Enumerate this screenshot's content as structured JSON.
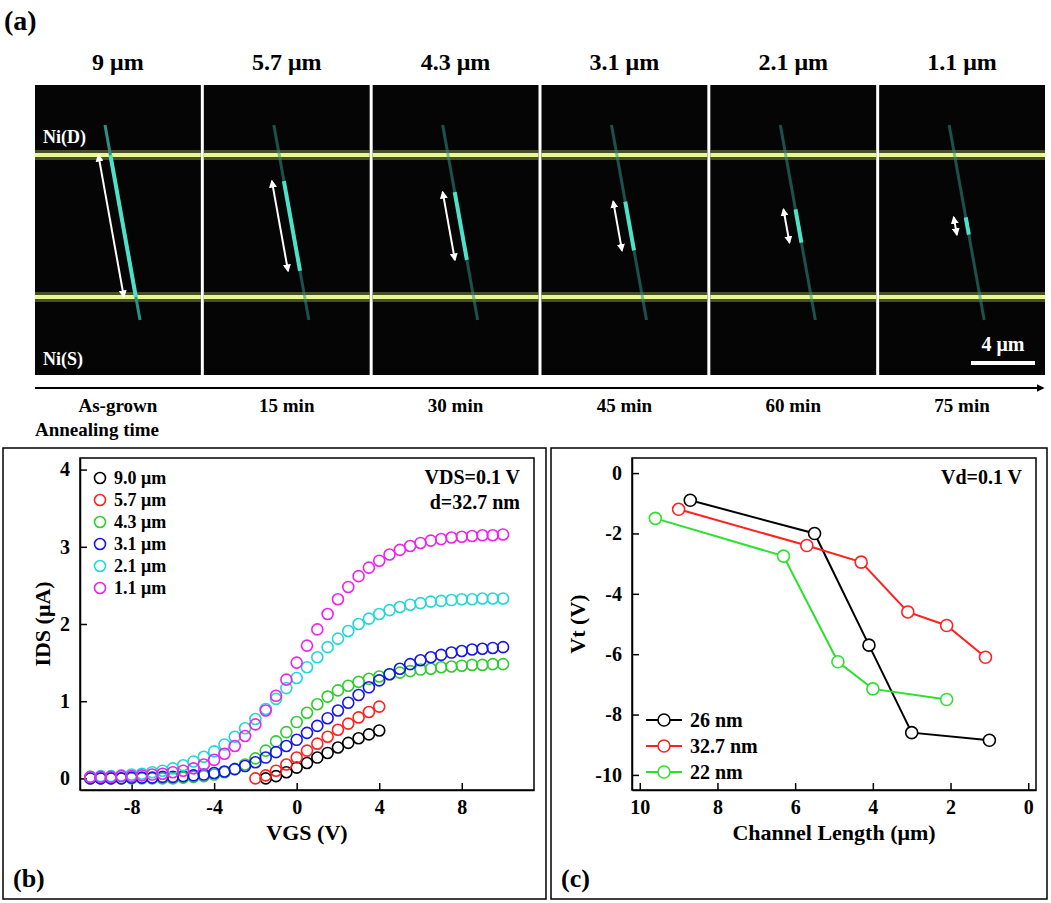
{
  "panel_a": {
    "label": "(a)",
    "electrode_top": "Ni(D)",
    "electrode_bottom": "Ni(S)",
    "scale_bar": {
      "value": 4,
      "label": "4 μm"
    },
    "axis_title": "Annealing time",
    "frames": [
      {
        "length": {
          "value": 9,
          "label": "9 μm"
        },
        "time": "As-grown"
      },
      {
        "length": {
          "value": 5.7,
          "label": "5.7 μm"
        },
        "time": "15 min"
      },
      {
        "length": {
          "value": 4.3,
          "label": "4.3 μm"
        },
        "time": "30 min"
      },
      {
        "length": {
          "value": 3.1,
          "label": "3.1 μm"
        },
        "time": "45 min"
      },
      {
        "length": {
          "value": 2.1,
          "label": "2.1 μm"
        },
        "time": "60 min"
      },
      {
        "length": {
          "value": 1.1,
          "label": "1.1 μm"
        },
        "time": "75 min"
      }
    ]
  },
  "chart_data": [
    {
      "type": "scatter",
      "panel_label": "(b)",
      "xlabel": "VGS (V)",
      "ylabel": "IDS (μA)",
      "annotations": [
        "VDS=0.1 V",
        "d=32.7 nm"
      ],
      "xlim": [
        -10.5,
        11.5
      ],
      "xticks": [
        -8,
        -4,
        0,
        4,
        8
      ],
      "ylim": [
        -0.15,
        4.15
      ],
      "yticks": [
        0,
        1,
        2,
        3,
        4
      ],
      "legend": "upper left",
      "marker": "circle",
      "line_style": "none",
      "series": [
        {
          "name": "9.0 μm",
          "color": "#000000",
          "x": [
            -1.5,
            -1,
            -0.5,
            0,
            0.5,
            1,
            1.5,
            2,
            2.5,
            3,
            3.5,
            4
          ],
          "values": [
            0,
            0.03,
            0.08,
            0.14,
            0.2,
            0.27,
            0.33,
            0.4,
            0.46,
            0.52,
            0.57,
            0.62
          ]
        },
        {
          "name": "5.7 μm",
          "color": "#ff2020",
          "x": [
            -2,
            -1.5,
            -1,
            -0.5,
            0,
            0.5,
            1,
            1.5,
            2,
            2.5,
            3,
            3.5,
            4
          ],
          "values": [
            0,
            0.04,
            0.1,
            0.18,
            0.27,
            0.36,
            0.45,
            0.54,
            0.63,
            0.71,
            0.79,
            0.86,
            0.93
          ]
        },
        {
          "name": "4.3 μm",
          "color": "#2ecc2e",
          "x": [
            -10,
            -9.5,
            -9,
            -8.5,
            -8,
            -7.5,
            -7,
            -6.5,
            -6,
            -5.5,
            -5,
            -4.5,
            -4,
            -3.5,
            -3,
            -2.5,
            -2,
            -1.5,
            -1,
            -0.5,
            0,
            0.5,
            1,
            1.5,
            2,
            2.5,
            3,
            3.5,
            4,
            4.5,
            5,
            5.5,
            6,
            6.5,
            7,
            7.5,
            8,
            8.5,
            9,
            9.5,
            10
          ],
          "values": [
            0,
            0,
            0,
            0,
            0,
            0,
            0,
            0,
            0,
            0.01,
            0.02,
            0.03,
            0.05,
            0.08,
            0.12,
            0.18,
            0.26,
            0.36,
            0.48,
            0.6,
            0.73,
            0.85,
            0.96,
            1.06,
            1.14,
            1.2,
            1.25,
            1.29,
            1.32,
            1.35,
            1.37,
            1.39,
            1.41,
            1.42,
            1.44,
            1.45,
            1.46,
            1.47,
            1.47,
            1.48,
            1.48
          ]
        },
        {
          "name": "3.1 μm",
          "color": "#1515ee",
          "x": [
            -10,
            -9.5,
            -9,
            -8.5,
            -8,
            -7.5,
            -7,
            -6.5,
            -6,
            -5.5,
            -5,
            -4.5,
            -4,
            -3.5,
            -3,
            -2.5,
            -2,
            -1.5,
            -1,
            -0.5,
            0,
            0.5,
            1,
            1.5,
            2,
            2.5,
            3,
            3.5,
            4,
            4.5,
            5,
            5.5,
            6,
            6.5,
            7,
            7.5,
            8,
            8.5,
            9,
            9.5,
            10
          ],
          "values": [
            0,
            0,
            0,
            0,
            0.01,
            0.01,
            0.01,
            0.02,
            0.02,
            0.03,
            0.04,
            0.05,
            0.07,
            0.09,
            0.12,
            0.16,
            0.21,
            0.27,
            0.34,
            0.42,
            0.5,
            0.59,
            0.68,
            0.78,
            0.88,
            0.98,
            1.08,
            1.18,
            1.27,
            1.35,
            1.42,
            1.48,
            1.53,
            1.57,
            1.6,
            1.63,
            1.65,
            1.67,
            1.68,
            1.69,
            1.7
          ]
        },
        {
          "name": "2.1 μm",
          "color": "#1fd8d8",
          "x": [
            -10,
            -9.5,
            -9,
            -8.5,
            -8,
            -7.5,
            -7,
            -6.5,
            -6,
            -5.5,
            -5,
            -4.5,
            -4,
            -3.5,
            -3,
            -2.5,
            -2,
            -1.5,
            -1,
            -0.5,
            0,
            0.5,
            1,
            1.5,
            2,
            2.5,
            3,
            3.5,
            4,
            4.5,
            5,
            5.5,
            6,
            6.5,
            7,
            7.5,
            8,
            8.5,
            9,
            9.5,
            10
          ],
          "values": [
            0.02,
            0.03,
            0.03,
            0.04,
            0.05,
            0.06,
            0.08,
            0.1,
            0.13,
            0.17,
            0.22,
            0.28,
            0.35,
            0.44,
            0.54,
            0.65,
            0.77,
            0.9,
            1.03,
            1.17,
            1.3,
            1.44,
            1.57,
            1.7,
            1.81,
            1.91,
            2.0,
            2.07,
            2.13,
            2.18,
            2.22,
            2.25,
            2.27,
            2.29,
            2.3,
            2.31,
            2.32,
            2.32,
            2.33,
            2.33,
            2.33
          ]
        },
        {
          "name": "1.1 μm",
          "color": "#ee22ee",
          "x": [
            -10,
            -9.5,
            -9,
            -8.5,
            -8,
            -7.5,
            -7,
            -6.5,
            -6,
            -5.5,
            -5,
            -4.5,
            -4,
            -3.5,
            -3,
            -2.5,
            -2,
            -1.5,
            -1,
            -0.5,
            0,
            0.5,
            1,
            1.5,
            2,
            2.5,
            3,
            3.5,
            4,
            4.5,
            5,
            5.5,
            6,
            6.5,
            7,
            7.5,
            8,
            8.5,
            9,
            9.5,
            10
          ],
          "values": [
            0.02,
            0.02,
            0.02,
            0.03,
            0.03,
            0.04,
            0.05,
            0.06,
            0.08,
            0.1,
            0.13,
            0.18,
            0.24,
            0.32,
            0.42,
            0.55,
            0.7,
            0.88,
            1.07,
            1.28,
            1.5,
            1.72,
            1.93,
            2.13,
            2.32,
            2.48,
            2.62,
            2.73,
            2.82,
            2.9,
            2.96,
            3.01,
            3.05,
            3.08,
            3.1,
            3.12,
            3.13,
            3.14,
            3.15,
            3.15,
            3.16
          ]
        }
      ]
    },
    {
      "type": "line",
      "panel_label": "(c)",
      "xlabel": "Channel Length (μm)",
      "ylabel": "Vt (V)",
      "annotations": [
        "Vd=0.1 V"
      ],
      "xlim": [
        10.2,
        -0.2
      ],
      "xticks": [
        10,
        8,
        6,
        4,
        2,
        0
      ],
      "ylim": [
        -10.5,
        0.5
      ],
      "yticks": [
        0,
        -2,
        -4,
        -6,
        -8,
        -10
      ],
      "legend": "lower left",
      "marker": "circle",
      "line_style": "solid",
      "series": [
        {
          "name": "26 nm",
          "color": "#000000",
          "x": [
            8.7,
            5.5,
            4.1,
            3.0,
            1.0
          ],
          "values": [
            -0.9,
            -2.0,
            -5.7,
            -8.6,
            -8.85
          ]
        },
        {
          "name": "32.7 nm",
          "color": "#ff2020",
          "x": [
            9.0,
            5.7,
            4.3,
            3.1,
            2.1,
            1.1
          ],
          "values": [
            -1.2,
            -2.4,
            -2.95,
            -4.6,
            -5.05,
            -6.1
          ]
        },
        {
          "name": "22 nm",
          "color": "#2ee02e",
          "x": [
            9.6,
            6.3,
            4.9,
            4.0,
            2.1
          ],
          "values": [
            -1.5,
            -2.75,
            -6.25,
            -7.15,
            -7.5
          ]
        }
      ]
    }
  ]
}
